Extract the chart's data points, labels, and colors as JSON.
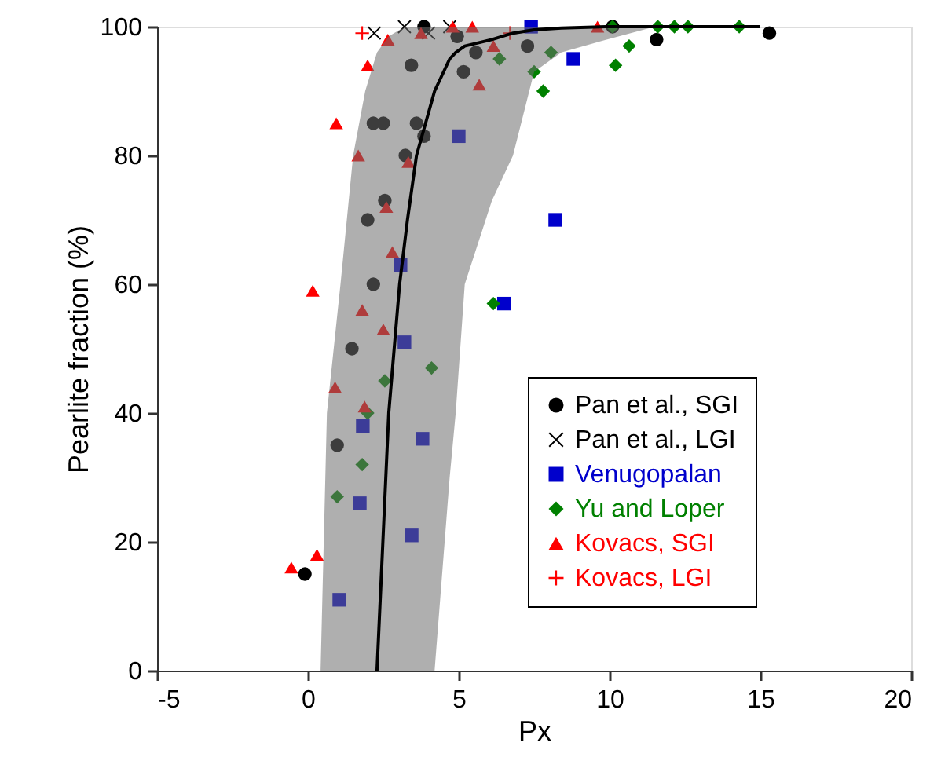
{
  "chart_data": {
    "type": "scatter",
    "xlabel": "Px",
    "ylabel": "Pearlite fraction (%)",
    "xlim": [
      -5,
      20
    ],
    "xticks": [
      -5,
      0,
      5,
      10,
      15,
      20
    ],
    "ylim": [
      0,
      100
    ],
    "yticks": [
      0,
      20,
      40,
      60,
      80,
      100
    ],
    "legend": "bottom right",
    "series": [
      {
        "type": "line",
        "color": "#000000",
        "line_style": "solid",
        "x": [
          0.42,
          0.63,
          1.08,
          1.5,
          1.9,
          2.29,
          2.68,
          3.04,
          3.3,
          3.6,
          4.2,
          4.7,
          4.9,
          5.2,
          6.1,
          6.8,
          7.5,
          8.4,
          9.9,
          11.5,
          15
        ],
        "values": [
          null,
          null,
          null,
          null,
          null,
          0,
          40,
          60,
          70,
          80,
          90,
          95,
          96,
          97,
          98,
          99,
          99.5,
          99.8,
          100,
          100,
          100
        ],
        "lower": [
          0,
          0,
          0,
          0,
          0,
          0,
          0,
          0,
          0,
          0,
          0,
          30,
          40,
          60,
          73,
          80,
          93,
          96,
          98,
          100,
          100
        ],
        "upper": [
          0,
          40,
          60,
          80,
          90,
          96,
          98.5,
          99.5,
          100,
          100,
          100,
          100,
          100,
          100,
          100,
          100,
          100,
          100,
          100,
          100,
          100
        ]
      },
      {
        "name": "Pan et al., SGI",
        "color": "#000000",
        "marker": "circle",
        "x": [
          -0.1,
          0.97,
          1.46,
          3.43,
          2.17,
          2.5,
          3.6,
          3.85,
          3.23,
          2.55,
          1.98,
          2.17,
          3.85,
          4.95,
          5.57,
          5.16,
          7.28,
          11.56,
          15.3,
          10.1
        ],
        "values": [
          15,
          35,
          50,
          94,
          85,
          85,
          85,
          83,
          80,
          73,
          70,
          60,
          100,
          98.5,
          96,
          93,
          97,
          98,
          99,
          100
        ]
      },
      {
        "name": "Pan et al., LGI",
        "color": "#000000",
        "marker": "cross",
        "x": [
          2.2,
          3.2,
          4.0,
          4.7
        ],
        "values": [
          99,
          100,
          99,
          100
        ]
      },
      {
        "name": "Venugopalan",
        "color": "#0000cc",
        "marker": "square",
        "x": [
          5.0,
          3.07,
          3.2,
          6.5,
          7.4,
          8.8,
          8.2,
          1.82,
          1.72,
          3.8,
          3.44,
          1.04
        ],
        "values": [
          83,
          63,
          51,
          57,
          100,
          95,
          70,
          38,
          26,
          36,
          21,
          11
        ]
      },
      {
        "name": "Yu and Loper",
        "color": "#008000",
        "marker": "diamond",
        "x": [
          6.35,
          7.5,
          8.06,
          7.8,
          10.2,
          10.65,
          10.1,
          11.6,
          12.15,
          12.6,
          14.3,
          6.15,
          4.1,
          2.55,
          1.98,
          1.8,
          0.97
        ],
        "values": [
          95,
          93,
          96,
          90,
          94,
          97,
          100,
          100,
          100,
          100,
          100,
          57,
          47,
          45,
          40,
          32,
          27
        ]
      },
      {
        "name": "Kovacs, SGI",
        "color": "#ff0000",
        "marker": "triangle",
        "x": [
          2.65,
          1.98,
          0.94,
          1.67,
          0.16,
          3.33,
          2.6,
          2.8,
          1.8,
          2.5,
          3.75,
          4.8,
          5.45,
          6.15,
          5.68,
          9.6,
          0.9,
          1.88,
          -0.55,
          0.3
        ],
        "values": [
          98,
          94,
          85,
          80,
          59,
          79,
          72,
          65,
          56,
          53,
          99,
          100,
          100,
          97,
          91,
          100,
          44,
          41,
          16,
          18
        ]
      },
      {
        "name": "Kovacs, LGI",
        "color": "#ff0000",
        "marker": "plus",
        "x": [
          1.8,
          6.7
        ],
        "values": [
          99,
          99
        ]
      }
    ]
  }
}
